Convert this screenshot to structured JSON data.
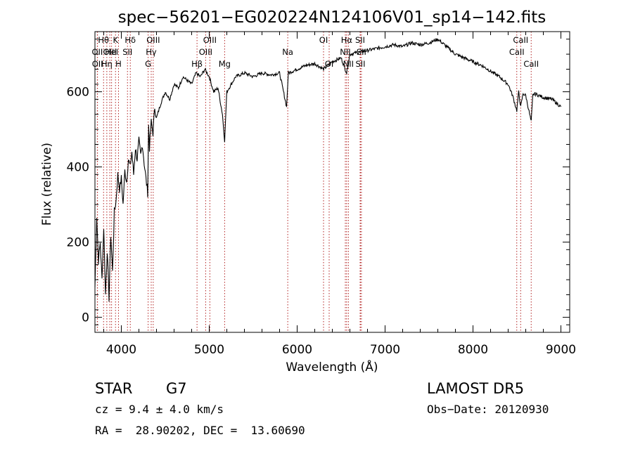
{
  "chart_data": {
    "type": "line",
    "title": "spec−56201−EG020224N124106V01_sp14−142.fits",
    "xlabel": "Wavelength (Å)",
    "ylabel": "Flux (relative)",
    "xlim": [
      3700,
      9100
    ],
    "ylim": [
      -40,
      760
    ],
    "x_ticks": [
      4000,
      5000,
      6000,
      7000,
      8000,
      9000
    ],
    "x_tick_labels": [
      "4000",
      "5000",
      "6000",
      "7000",
      "8000",
      "9000"
    ],
    "y_ticks": [
      0,
      200,
      400,
      600
    ],
    "y_tick_labels": [
      "0",
      "200",
      "400",
      "600"
    ],
    "grid": false,
    "series": [
      {
        "color": "#000000",
        "x": [
          3700,
          3720,
          3740,
          3760,
          3780,
          3800,
          3820,
          3840,
          3860,
          3880,
          3900,
          3920,
          3940,
          3960,
          3980,
          4000,
          4020,
          4040,
          4060,
          4080,
          4100,
          4120,
          4140,
          4160,
          4180,
          4200,
          4220,
          4240,
          4260,
          4280,
          4300,
          4310,
          4320,
          4340,
          4360,
          4380,
          4400,
          4450,
          4500,
          4550,
          4600,
          4650,
          4700,
          4750,
          4800,
          4850,
          4900,
          4950,
          5000,
          5050,
          5100,
          5150,
          5175,
          5200,
          5250,
          5300,
          5400,
          5500,
          5600,
          5700,
          5800,
          5880,
          5893,
          5900,
          6000,
          6100,
          6200,
          6300,
          6400,
          6500,
          6563,
          6600,
          6700,
          6800,
          6900,
          7000,
          7100,
          7200,
          7300,
          7400,
          7500,
          7600,
          7650,
          7700,
          7800,
          7900,
          8000,
          8100,
          8200,
          8300,
          8400,
          8450,
          8498,
          8520,
          8542,
          8570,
          8600,
          8662,
          8680,
          8700,
          8800,
          8900,
          8950,
          9000
        ],
        "y": [
          80,
          270,
          150,
          200,
          100,
          240,
          60,
          180,
          50,
          220,
          120,
          280,
          310,
          380,
          340,
          370,
          300,
          390,
          360,
          420,
          400,
          440,
          380,
          450,
          420,
          470,
          430,
          460,
          410,
          370,
          330,
          510,
          450,
          520,
          490,
          560,
          530,
          570,
          600,
          580,
          620,
          610,
          640,
          630,
          620,
          650,
          640,
          660,
          640,
          600,
          610,
          540,
          470,
          600,
          620,
          640,
          650,
          640,
          650,
          645,
          650,
          560,
          620,
          650,
          660,
          670,
          675,
          660,
          680,
          690,
          650,
          700,
          705,
          710,
          715,
          720,
          725,
          720,
          730,
          725,
          730,
          740,
          730,
          720,
          700,
          690,
          680,
          670,
          655,
          640,
          620,
          590,
          550,
          600,
          560,
          595,
          590,
          520,
          590,
          595,
          585,
          580,
          570,
          560
        ]
      }
    ],
    "lines": [
      {
        "name": "Hθ",
        "x": 3798,
        "row": 0
      },
      {
        "name": "OII",
        "x": 3727,
        "row": 1
      },
      {
        "name": "OIII",
        "x": 3869,
        "row": 1
      },
      {
        "name": "OII",
        "x": 3729,
        "row": 2
      },
      {
        "name": "Hη",
        "x": 3835,
        "row": 2
      },
      {
        "name": "K",
        "x": 3934,
        "row": 0
      },
      {
        "name": "HeI",
        "x": 3889,
        "row": 1
      },
      {
        "name": "H",
        "x": 3968,
        "row": 2
      },
      {
        "name": "Hδ",
        "x": 4102,
        "row": 0
      },
      {
        "name": "SII",
        "x": 4070,
        "row": 1
      },
      {
        "name": "OIII",
        "x": 4363,
        "row": 0
      },
      {
        "name": "Hγ",
        "x": 4340,
        "row": 1
      },
      {
        "name": "G",
        "x": 4305,
        "row": 2
      },
      {
        "name": "OIII",
        "x": 5007,
        "row": 0
      },
      {
        "name": "OIII",
        "x": 4959,
        "row": 1
      },
      {
        "name": "Hβ",
        "x": 4861,
        "row": 2
      },
      {
        "name": "Mg",
        "x": 5175,
        "row": 2
      },
      {
        "name": "Na",
        "x": 5893,
        "row": 1
      },
      {
        "name": "OI",
        "x": 6300,
        "row": 0
      },
      {
        "name": "OI",
        "x": 6364,
        "row": 2
      },
      {
        "name": "Hα",
        "x": 6563,
        "row": 0
      },
      {
        "name": "SII",
        "x": 6716,
        "row": 0
      },
      {
        "name": "NII",
        "x": 6548,
        "row": 1
      },
      {
        "name": "SII",
        "x": 6731,
        "row": 1
      },
      {
        "name": "NII",
        "x": 6583,
        "row": 2
      },
      {
        "name": "SII",
        "x": 6720,
        "row": 2
      },
      {
        "name": "CaII",
        "x": 8542,
        "row": 0
      },
      {
        "name": "CaII",
        "x": 8498,
        "row": 1
      },
      {
        "name": "CaII",
        "x": 8662,
        "row": 2
      }
    ],
    "line_color": "#b22222"
  },
  "info": {
    "class": "STAR",
    "subclass": "G7",
    "survey": "LAMOST DR5",
    "cz": "cz = 9.4 ± 4.0 km/s",
    "obsdate": "Obs−Date: 20120930",
    "radec": "RA =  28.90202, DEC =  13.60690"
  }
}
